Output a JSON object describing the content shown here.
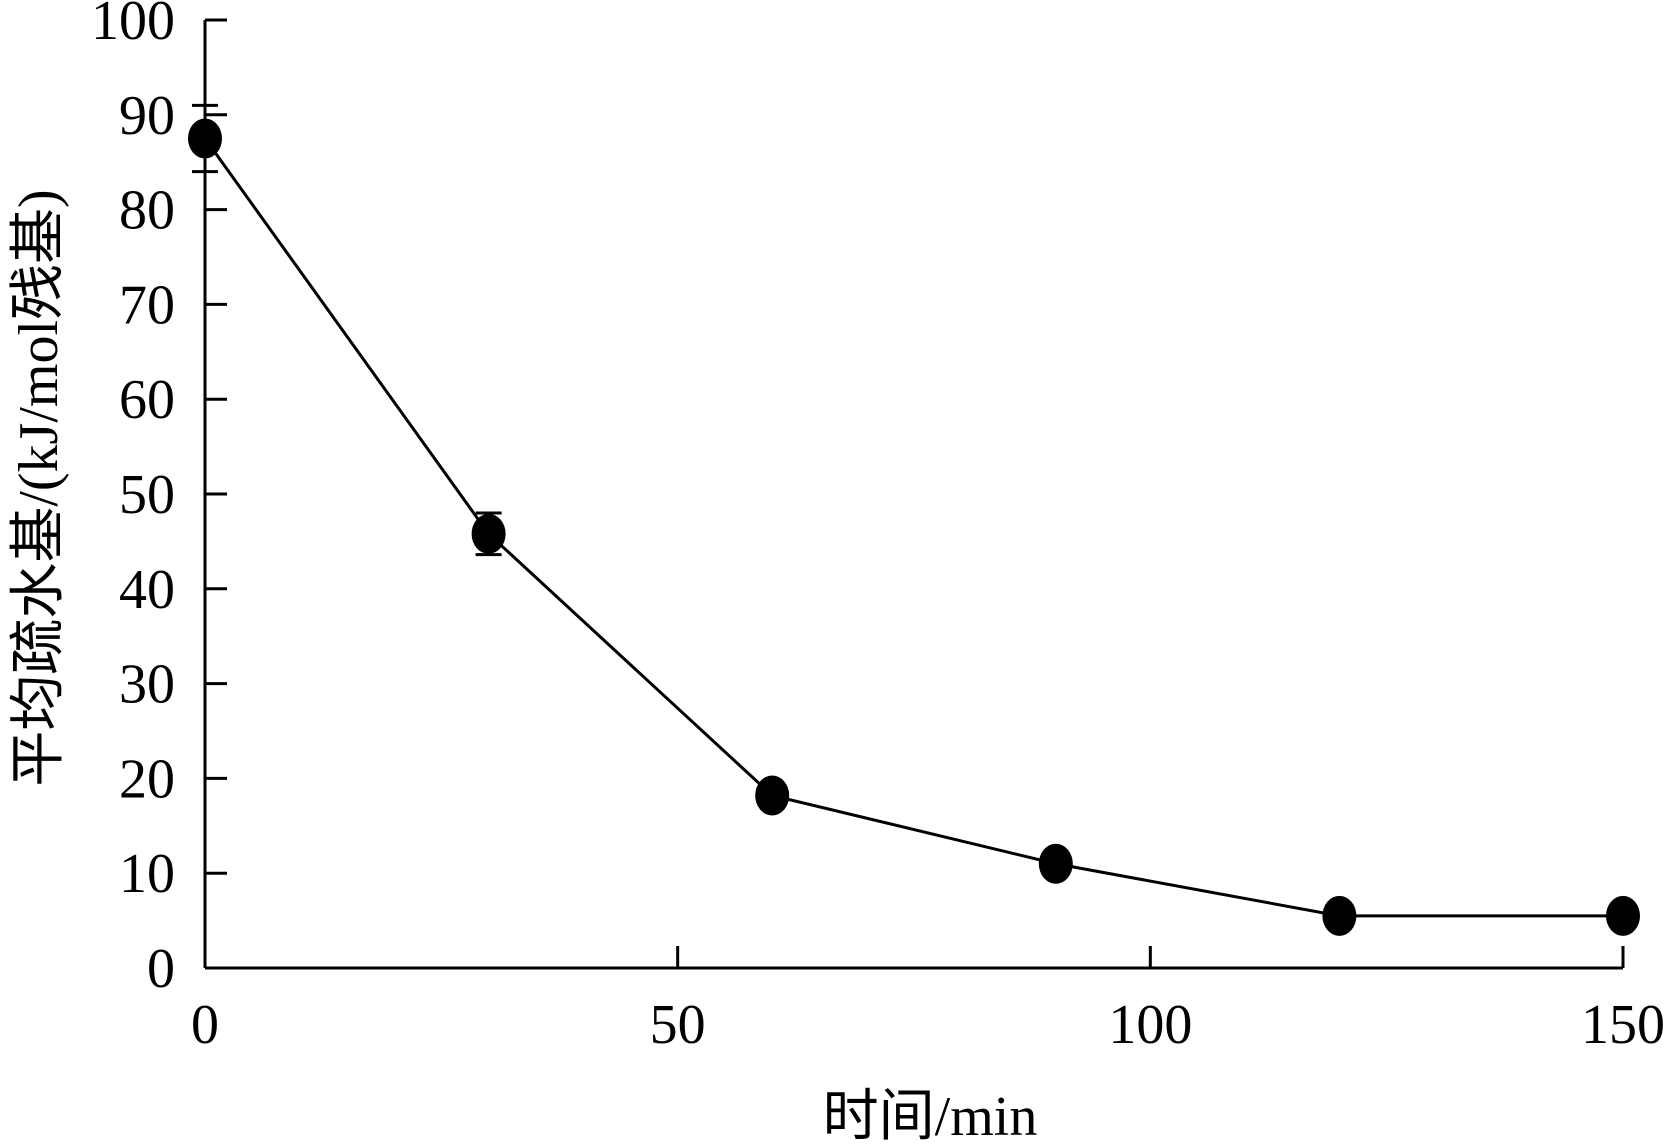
{
  "chart_data": {
    "type": "line",
    "xlabel": "时间/min",
    "ylabel": "平均疏水基/(kJ/mol残基)",
    "xlim": [
      0,
      150
    ],
    "ylim": [
      0,
      100
    ],
    "xticks": [
      0,
      50,
      100,
      150
    ],
    "yticks": [
      0,
      10,
      20,
      30,
      40,
      50,
      60,
      70,
      80,
      90,
      100
    ],
    "grid": false,
    "series": [
      {
        "x": [
          0,
          30,
          60,
          90,
          120,
          150
        ],
        "y": [
          87.5,
          45.8,
          18.2,
          11.0,
          5.5,
          5.5
        ],
        "error": [
          3.5,
          2.2,
          0.8,
          0.5,
          0.3,
          0.3
        ]
      }
    ],
    "colors": {
      "line": "#000000",
      "marker": "#000000",
      "axis": "#000000"
    }
  }
}
